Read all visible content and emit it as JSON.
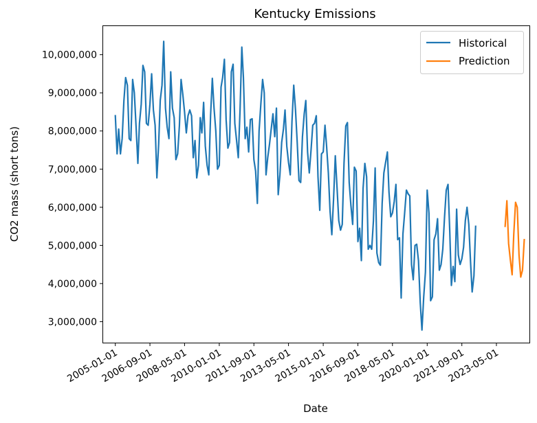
{
  "chart_data": {
    "type": "line",
    "title": "Kentucky Emissions",
    "xlabel": "Date",
    "ylabel": "CO2 mass (short tons)",
    "x_ticks": [
      "2005-01-01",
      "2006-09-01",
      "2008-05-01",
      "2010-01-01",
      "2011-09-01",
      "2013-05-01",
      "2015-01-01",
      "2016-09-01",
      "2018-05-01",
      "2020-01-01",
      "2021-09-01",
      "2023-05-01"
    ],
    "y_ticks": [
      3000000,
      4000000,
      5000000,
      6000000,
      7000000,
      8000000,
      9000000,
      10000000
    ],
    "y_tick_labels": [
      "3,000,000",
      "4,000,000",
      "5,000,000",
      "6,000,000",
      "7,000,000",
      "8,000,000",
      "9,000,000",
      "10,000,000"
    ],
    "xlim": [
      "2004-06-01",
      "2024-12-01"
    ],
    "ylim": [
      2450000,
      10750000
    ],
    "legend_position": "top-right",
    "grid": false,
    "series": [
      {
        "name": "Historical",
        "color": "#1f77b4",
        "x_start": "2005-01-01",
        "frequency": "monthly",
        "values": [
          8400000,
          7400000,
          8050000,
          7400000,
          7800000,
          8800000,
          9400000,
          9200000,
          7800000,
          7750000,
          9350000,
          9000000,
          8100000,
          7150000,
          8200000,
          8700000,
          9720000,
          9550000,
          8200000,
          8150000,
          8700000,
          9500000,
          8550000,
          8150000,
          6770000,
          7650000,
          8800000,
          9200000,
          10350000,
          8600000,
          8100000,
          7800000,
          9550000,
          8600000,
          8350000,
          7250000,
          7400000,
          8150000,
          9350000,
          8950000,
          8500000,
          7950000,
          8400000,
          8550000,
          8400000,
          7300000,
          7750000,
          6770000,
          7100000,
          8350000,
          7950000,
          8750000,
          7600000,
          7100000,
          6850000,
          8400000,
          9380000,
          8600000,
          8000000,
          7000000,
          7100000,
          9150000,
          9400000,
          9880000,
          8300000,
          7550000,
          7700000,
          9550000,
          9750000,
          8200000,
          7750000,
          7300000,
          8550000,
          10200000,
          9400000,
          7800000,
          8100000,
          7450000,
          8300000,
          8320000,
          7250000,
          6950000,
          6100000,
          8000000,
          8700000,
          9350000,
          9000000,
          6850000,
          7300000,
          7650000,
          8050000,
          8450000,
          7850000,
          8600000,
          6330000,
          6850000,
          7700000,
          8050000,
          8550000,
          7600000,
          7180000,
          6850000,
          8250000,
          9200000,
          8550000,
          7700000,
          6700000,
          6650000,
          7850000,
          8450000,
          8800000,
          7450000,
          6900000,
          7500000,
          8150000,
          8200000,
          8400000,
          6800000,
          5920000,
          7400000,
          7450000,
          8150000,
          7600000,
          6900000,
          5900000,
          5280000,
          6200000,
          7350000,
          6500000,
          5650000,
          5400000,
          5550000,
          7150000,
          8130000,
          8220000,
          6650000,
          6050000,
          5550000,
          7050000,
          6950000,
          5100000,
          5450000,
          4600000,
          6500000,
          7150000,
          6800000,
          4900000,
          5000000,
          4900000,
          5650000,
          7030000,
          4800000,
          4550000,
          4480000,
          6100000,
          6900000,
          7180000,
          7450000,
          6400000,
          5750000,
          5850000,
          6150000,
          6600000,
          5150000,
          5200000,
          3620000,
          5300000,
          5850000,
          6450000,
          6350000,
          6300000,
          4500000,
          4100000,
          5000000,
          5030000,
          4600000,
          3500000,
          2780000,
          3650000,
          4300000,
          6450000,
          5850000,
          3550000,
          3650000,
          5150000,
          5300000,
          5700000,
          4350000,
          4500000,
          4900000,
          5750000,
          6450000,
          6600000,
          5350000,
          3950000,
          4450000,
          4050000,
          5950000,
          4750000,
          4500000,
          4650000,
          4950000,
          5650000,
          6000000,
          5550000,
          4550000,
          3780000,
          4200000,
          5500000
        ]
      },
      {
        "name": "Prediction",
        "color": "#ff7f0e",
        "x_start": "2023-10-01",
        "frequency": "monthly",
        "values": [
          5500000,
          6170000,
          5050000,
          4620000,
          4230000,
          5300000,
          6130000,
          6000000,
          4750000,
          4170000,
          4350000,
          5150000
        ]
      }
    ]
  }
}
